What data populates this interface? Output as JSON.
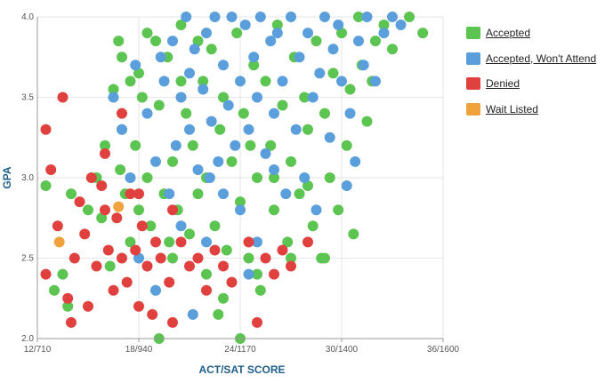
{
  "chart_data": {
    "type": "scatter",
    "xlabel": "ACT/SAT SCORE",
    "ylabel": "GPA",
    "x_ticks": [
      {
        "value": 12,
        "label": "12/710"
      },
      {
        "value": 18,
        "label": "18/940"
      },
      {
        "value": 24,
        "label": "24/1170"
      },
      {
        "value": 30,
        "label": "30/1400"
      },
      {
        "value": 36,
        "label": "36/1600"
      }
    ],
    "y_ticks": [
      {
        "value": 2.0,
        "label": "2.0"
      },
      {
        "value": 2.5,
        "label": "2.5"
      },
      {
        "value": 3.0,
        "label": "3.0"
      },
      {
        "value": 3.5,
        "label": "3.5"
      },
      {
        "value": 4.0,
        "label": "4.0"
      }
    ],
    "xlim": [
      12,
      36
    ],
    "ylim": [
      2.0,
      4.0
    ],
    "grid": true,
    "legend_position": "right",
    "series": [
      {
        "name": "Accepted",
        "color": "#5cc450",
        "points": [
          [
            12.5,
            2.95
          ],
          [
            13.0,
            2.3
          ],
          [
            13.5,
            2.4
          ],
          [
            13.8,
            2.2
          ],
          [
            14.0,
            2.9
          ],
          [
            15.0,
            2.8
          ],
          [
            15.5,
            3.0
          ],
          [
            16.0,
            3.2
          ],
          [
            16.3,
            2.45
          ],
          [
            16.5,
            3.55
          ],
          [
            16.8,
            3.85
          ],
          [
            17.0,
            3.3
          ],
          [
            17.2,
            2.9
          ],
          [
            17.5,
            2.6
          ],
          [
            17.5,
            3.6
          ],
          [
            17.8,
            3.2
          ],
          [
            18.0,
            2.8
          ],
          [
            18.2,
            3.5
          ],
          [
            18.5,
            3.0
          ],
          [
            18.5,
            3.9
          ],
          [
            18.7,
            2.7
          ],
          [
            19.0,
            2.3
          ],
          [
            19.2,
            3.45
          ],
          [
            19.2,
            2.0
          ],
          [
            19.5,
            2.9
          ],
          [
            19.7,
            3.75
          ],
          [
            20.0,
            2.5
          ],
          [
            20.0,
            3.1
          ],
          [
            20.3,
            2.8
          ],
          [
            20.5,
            3.95
          ],
          [
            20.8,
            3.4
          ],
          [
            21.0,
            2.65
          ],
          [
            21.2,
            3.2
          ],
          [
            21.5,
            2.9
          ],
          [
            21.8,
            3.6
          ],
          [
            22.0,
            2.4
          ],
          [
            22.0,
            3.0
          ],
          [
            22.3,
            3.8
          ],
          [
            22.5,
            2.7
          ],
          [
            22.8,
            3.3
          ],
          [
            23.0,
            3.5
          ],
          [
            23.2,
            2.55
          ],
          [
            23.5,
            3.1
          ],
          [
            23.8,
            3.9
          ],
          [
            24.0,
            2.0
          ],
          [
            24.0,
            2.85
          ],
          [
            24.2,
            3.4
          ],
          [
            24.5,
            2.5
          ],
          [
            24.8,
            3.7
          ],
          [
            25.0,
            3.0
          ],
          [
            25.2,
            2.3
          ],
          [
            25.5,
            3.6
          ],
          [
            25.8,
            3.2
          ],
          [
            26.0,
            2.8
          ],
          [
            26.2,
            3.95
          ],
          [
            26.5,
            3.45
          ],
          [
            26.8,
            2.6
          ],
          [
            27.0,
            3.1
          ],
          [
            27.2,
            3.75
          ],
          [
            27.5,
            2.9
          ],
          [
            27.8,
            3.5
          ],
          [
            28.0,
            3.3
          ],
          [
            28.3,
            2.7
          ],
          [
            28.5,
            3.85
          ],
          [
            28.8,
            2.5
          ],
          [
            29.0,
            3.4
          ],
          [
            29.3,
            3.0
          ],
          [
            29.5,
            3.65
          ],
          [
            29.8,
            2.8
          ],
          [
            30.0,
            3.9
          ],
          [
            30.3,
            3.2
          ],
          [
            30.5,
            3.55
          ],
          [
            30.7,
            2.65
          ],
          [
            31.0,
            4.0
          ],
          [
            31.2,
            3.7
          ],
          [
            31.5,
            3.35
          ],
          [
            32.0,
            3.85
          ],
          [
            32.5,
            3.95
          ],
          [
            33.0,
            3.8
          ],
          [
            34.0,
            4.0
          ],
          [
            34.8,
            3.9
          ],
          [
            17.0,
            3.75
          ],
          [
            18.0,
            3.65
          ],
          [
            19.0,
            3.85
          ],
          [
            20.5,
            3.6
          ],
          [
            21.5,
            3.85
          ],
          [
            23.0,
            2.25
          ],
          [
            25.0,
            2.4
          ],
          [
            26.0,
            3.0
          ],
          [
            27.0,
            2.5
          ],
          [
            28.0,
            2.95
          ],
          [
            15.8,
            2.75
          ],
          [
            16.9,
            3.05
          ],
          [
            19.8,
            2.6
          ],
          [
            22.7,
            2.15
          ],
          [
            24.6,
            3.2
          ],
          [
            29.0,
            2.5
          ],
          [
            31.8,
            3.6
          ]
        ]
      },
      {
        "name": "Accepted, Won't Attend",
        "color": "#5a9fdb",
        "points": [
          [
            16.5,
            3.5
          ],
          [
            17.0,
            3.3
          ],
          [
            17.5,
            3.0
          ],
          [
            17.8,
            3.7
          ],
          [
            18.0,
            2.5
          ],
          [
            18.5,
            3.4
          ],
          [
            19.0,
            3.1
          ],
          [
            19.0,
            2.3
          ],
          [
            19.5,
            3.6
          ],
          [
            19.8,
            2.9
          ],
          [
            20.0,
            3.85
          ],
          [
            20.2,
            3.2
          ],
          [
            20.5,
            2.7
          ],
          [
            20.5,
            3.5
          ],
          [
            20.8,
            4.0
          ],
          [
            21.0,
            3.3
          ],
          [
            21.2,
            2.15
          ],
          [
            21.3,
            3.8
          ],
          [
            21.5,
            3.05
          ],
          [
            21.8,
            3.55
          ],
          [
            22.0,
            3.9
          ],
          [
            22.0,
            2.6
          ],
          [
            22.3,
            3.35
          ],
          [
            22.5,
            4.0
          ],
          [
            22.7,
            3.1
          ],
          [
            23.0,
            3.7
          ],
          [
            23.0,
            2.9
          ],
          [
            23.3,
            3.45
          ],
          [
            23.5,
            4.0
          ],
          [
            23.7,
            3.2
          ],
          [
            24.0,
            3.6
          ],
          [
            24.0,
            2.8
          ],
          [
            24.3,
            3.95
          ],
          [
            24.5,
            3.3
          ],
          [
            24.8,
            3.75
          ],
          [
            25.0,
            3.5
          ],
          [
            25.0,
            2.6
          ],
          [
            25.2,
            4.0
          ],
          [
            25.5,
            3.15
          ],
          [
            25.8,
            3.85
          ],
          [
            26.0,
            3.4
          ],
          [
            26.2,
            3.9
          ],
          [
            26.5,
            3.6
          ],
          [
            26.7,
            2.9
          ],
          [
            27.0,
            4.0
          ],
          [
            27.3,
            3.3
          ],
          [
            27.5,
            3.75
          ],
          [
            27.8,
            3.0
          ],
          [
            28.0,
            3.9
          ],
          [
            28.3,
            3.5
          ],
          [
            28.5,
            2.8
          ],
          [
            28.7,
            3.65
          ],
          [
            29.0,
            4.0
          ],
          [
            29.3,
            3.25
          ],
          [
            29.5,
            3.8
          ],
          [
            29.8,
            3.95
          ],
          [
            30.0,
            3.6
          ],
          [
            30.3,
            2.95
          ],
          [
            30.5,
            3.4
          ],
          [
            31.0,
            3.85
          ],
          [
            31.3,
            3.7
          ],
          [
            31.5,
            4.0
          ],
          [
            32.0,
            3.6
          ],
          [
            32.5,
            3.9
          ],
          [
            33.0,
            4.0
          ],
          [
            33.5,
            3.95
          ],
          [
            30.8,
            3.1
          ],
          [
            26.0,
            3.05
          ],
          [
            24.5,
            2.4
          ],
          [
            22.2,
            3.0
          ],
          [
            21.0,
            3.65
          ],
          [
            19.3,
            3.75
          ]
        ]
      },
      {
        "name": "Denied",
        "color": "#e0413e",
        "points": [
          [
            12.5,
            2.4
          ],
          [
            12.5,
            3.3
          ],
          [
            12.8,
            3.05
          ],
          [
            13.2,
            2.7
          ],
          [
            13.5,
            3.5
          ],
          [
            13.8,
            2.25
          ],
          [
            14.2,
            2.5
          ],
          [
            14.5,
            2.85
          ],
          [
            14.8,
            2.65
          ],
          [
            15.0,
            2.2
          ],
          [
            15.2,
            3.0
          ],
          [
            15.5,
            2.45
          ],
          [
            15.8,
            2.95
          ],
          [
            16.0,
            3.15
          ],
          [
            16.2,
            2.55
          ],
          [
            16.5,
            2.3
          ],
          [
            16.7,
            2.75
          ],
          [
            17.0,
            2.5
          ],
          [
            17.0,
            3.4
          ],
          [
            17.3,
            2.35
          ],
          [
            17.5,
            2.9
          ],
          [
            17.8,
            2.55
          ],
          [
            18.0,
            2.2
          ],
          [
            18.2,
            2.7
          ],
          [
            18.5,
            2.45
          ],
          [
            18.8,
            2.15
          ],
          [
            19.0,
            2.6
          ],
          [
            19.3,
            2.5
          ],
          [
            19.8,
            2.35
          ],
          [
            20.0,
            2.1
          ],
          [
            20.5,
            2.6
          ],
          [
            21.0,
            2.45
          ],
          [
            21.5,
            2.5
          ],
          [
            22.0,
            2.3
          ],
          [
            22.5,
            2.55
          ],
          [
            23.0,
            2.45
          ],
          [
            23.5,
            2.35
          ],
          [
            24.5,
            2.6
          ],
          [
            25.0,
            2.1
          ],
          [
            25.5,
            2.5
          ],
          [
            26.0,
            2.4
          ],
          [
            26.5,
            2.55
          ],
          [
            27.0,
            2.45
          ],
          [
            28.0,
            2.6
          ],
          [
            14.0,
            2.1
          ],
          [
            16.0,
            2.8
          ],
          [
            18.0,
            2.9
          ],
          [
            20.0,
            2.8
          ]
        ]
      },
      {
        "name": "Wait Listed",
        "color": "#f0a23c",
        "points": [
          [
            13.3,
            2.6
          ],
          [
            16.8,
            2.82
          ]
        ]
      }
    ]
  }
}
